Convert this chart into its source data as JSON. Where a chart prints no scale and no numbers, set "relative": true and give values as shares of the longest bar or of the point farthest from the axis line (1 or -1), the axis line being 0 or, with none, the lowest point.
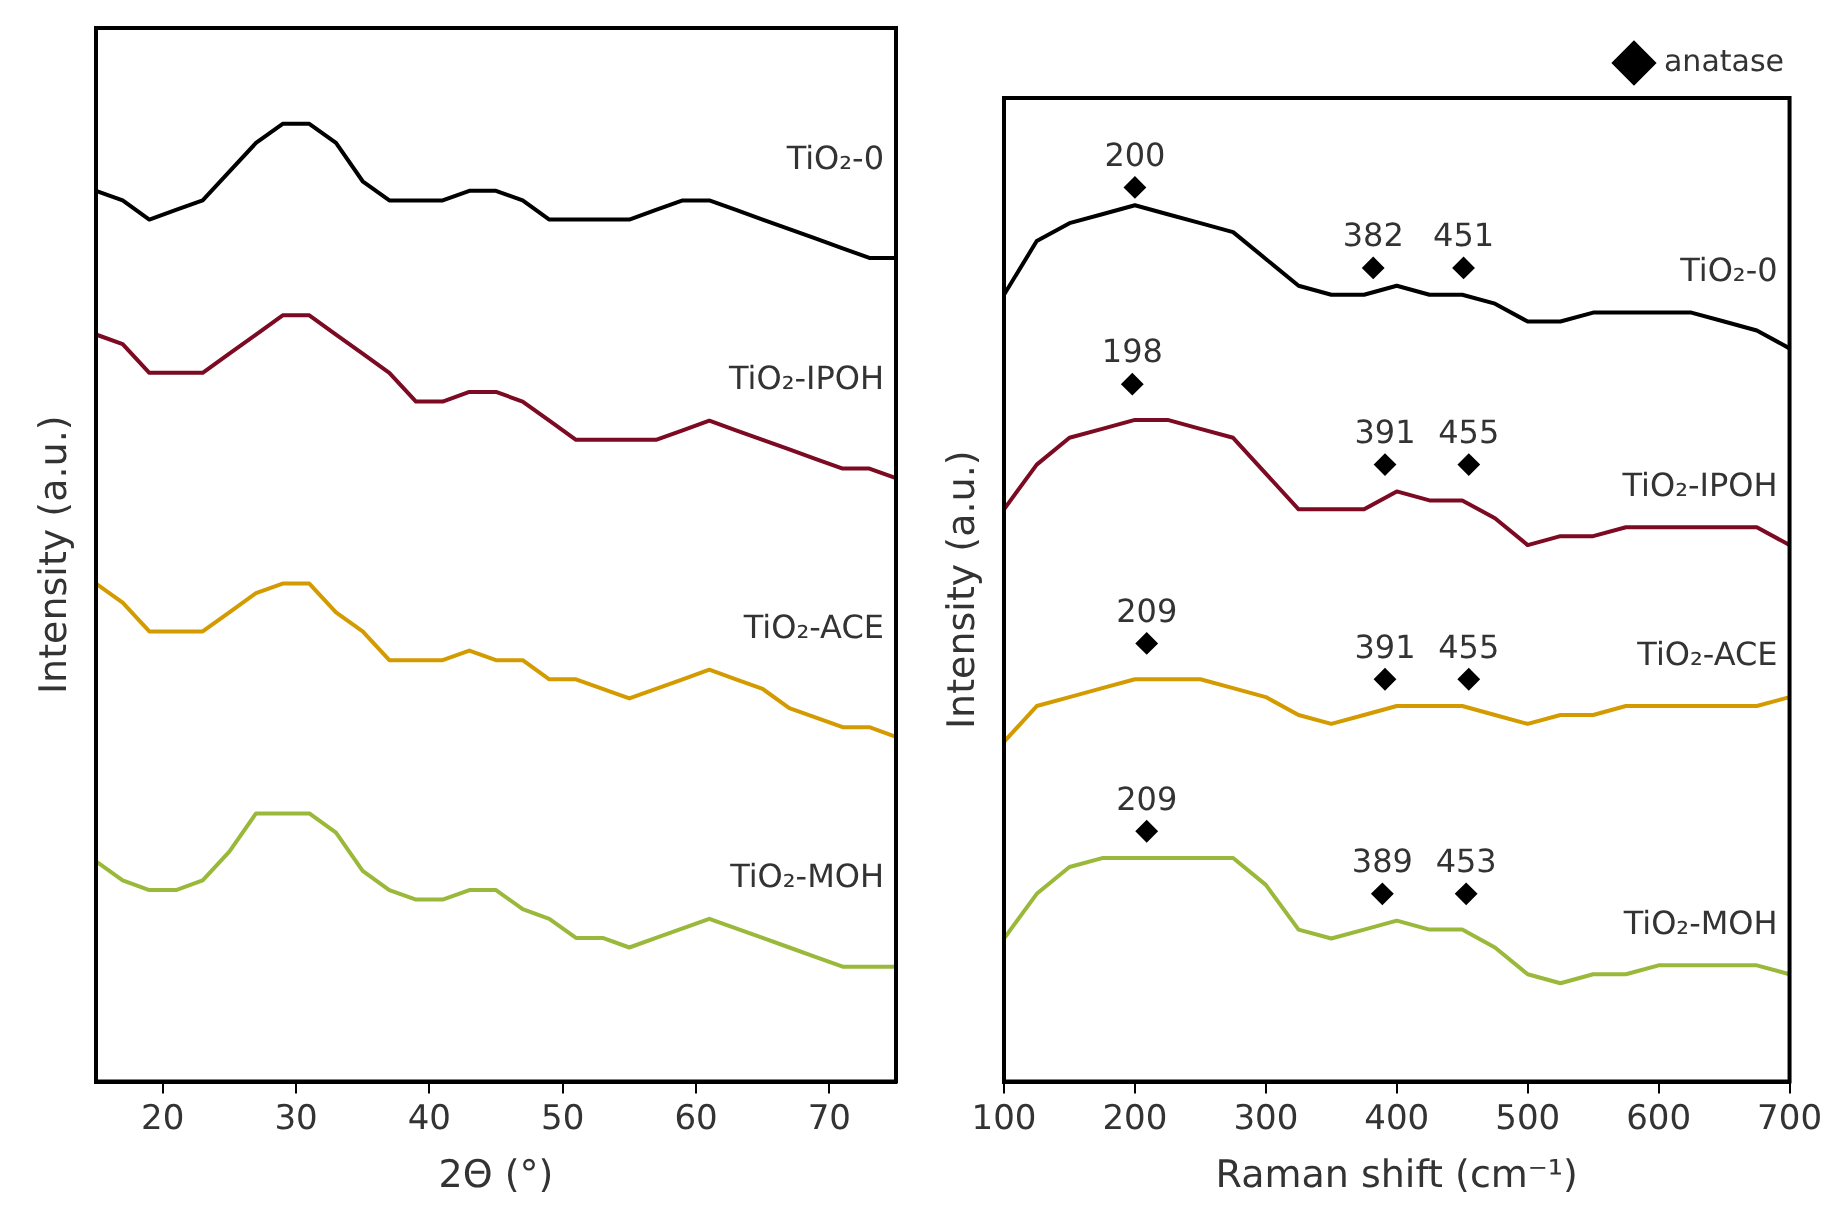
{
  "chart_data": [
    {
      "type": "line",
      "xlabel": "2Θ (°)",
      "ylabel": "Intensity (a.u.)",
      "relative": true,
      "legend": false,
      "xlim": [
        15,
        75
      ],
      "xticks": [
        20,
        30,
        40,
        50,
        60,
        70
      ],
      "x": [
        15,
        17,
        19,
        21,
        23,
        25,
        27,
        29,
        31,
        33,
        35,
        37,
        39,
        41,
        43,
        45,
        47,
        49,
        51,
        53,
        55,
        57,
        59,
        61,
        63,
        65,
        67,
        69,
        71,
        73,
        75
      ],
      "series": [
        {
          "name": "TiO₂-0",
          "color": "#000000",
          "values": [
            0.93,
            0.92,
            0.9,
            0.91,
            0.92,
            0.95,
            0.98,
            1.0,
            1.0,
            0.98,
            0.94,
            0.92,
            0.92,
            0.92,
            0.93,
            0.93,
            0.92,
            0.9,
            0.9,
            0.9,
            0.9,
            0.91,
            0.92,
            0.92,
            0.91,
            0.9,
            0.89,
            0.88,
            0.87,
            0.86,
            0.86
          ]
        },
        {
          "name": "TiO₂-IPOH",
          "color": "#7b0a22",
          "values": [
            0.78,
            0.77,
            0.74,
            0.74,
            0.74,
            0.76,
            0.78,
            0.8,
            0.8,
            0.78,
            0.76,
            0.74,
            0.71,
            0.71,
            0.72,
            0.72,
            0.71,
            0.69,
            0.67,
            0.67,
            0.67,
            0.67,
            0.68,
            0.69,
            0.68,
            0.67,
            0.66,
            0.65,
            0.64,
            0.64,
            0.63
          ]
        },
        {
          "name": "TiO₂-ACE",
          "color": "#d39b00",
          "values": [
            0.52,
            0.5,
            0.47,
            0.47,
            0.47,
            0.49,
            0.51,
            0.52,
            0.52,
            0.49,
            0.47,
            0.44,
            0.44,
            0.44,
            0.45,
            0.44,
            0.44,
            0.42,
            0.42,
            0.41,
            0.4,
            0.41,
            0.42,
            0.43,
            0.42,
            0.41,
            0.39,
            0.38,
            0.37,
            0.37,
            0.36
          ]
        },
        {
          "name": "TiO₂-MOH",
          "color": "#9ab83a",
          "values": [
            0.23,
            0.21,
            0.2,
            0.2,
            0.21,
            0.24,
            0.28,
            0.28,
            0.28,
            0.26,
            0.22,
            0.2,
            0.19,
            0.19,
            0.2,
            0.2,
            0.18,
            0.17,
            0.15,
            0.15,
            0.14,
            0.15,
            0.16,
            0.17,
            0.16,
            0.15,
            0.14,
            0.13,
            0.12,
            0.12,
            0.12
          ]
        }
      ]
    },
    {
      "type": "line",
      "xlabel": "Raman shift (cm⁻¹)",
      "ylabel": "Intensity (a.u.)",
      "relative": true,
      "legend": "top right",
      "xlim": [
        100,
        700
      ],
      "xticks": [
        100,
        200,
        300,
        400,
        500,
        600,
        700
      ],
      "x": [
        100,
        125,
        150,
        175,
        200,
        225,
        250,
        275,
        300,
        325,
        350,
        375,
        400,
        425,
        450,
        475,
        500,
        525,
        550,
        575,
        600,
        625,
        650,
        675,
        700
      ],
      "series": [
        {
          "name": "TiO₂-0",
          "color": "#000000",
          "values": [
            0.88,
            0.94,
            0.96,
            0.97,
            0.98,
            0.97,
            0.96,
            0.95,
            0.92,
            0.89,
            0.88,
            0.88,
            0.89,
            0.88,
            0.88,
            0.87,
            0.85,
            0.85,
            0.86,
            0.86,
            0.86,
            0.86,
            0.85,
            0.84,
            0.82
          ]
        },
        {
          "name": "TiO₂-IPOH",
          "color": "#7b0a22",
          "values": [
            0.64,
            0.69,
            0.72,
            0.73,
            0.74,
            0.74,
            0.73,
            0.72,
            0.68,
            0.64,
            0.64,
            0.64,
            0.66,
            0.65,
            0.65,
            0.63,
            0.6,
            0.61,
            0.61,
            0.62,
            0.62,
            0.62,
            0.62,
            0.62,
            0.6
          ]
        },
        {
          "name": "TiO₂-ACE",
          "color": "#d39b00",
          "values": [
            0.38,
            0.42,
            0.43,
            0.44,
            0.45,
            0.45,
            0.45,
            0.44,
            0.43,
            0.41,
            0.4,
            0.41,
            0.42,
            0.42,
            0.42,
            0.41,
            0.4,
            0.41,
            0.41,
            0.42,
            0.42,
            0.42,
            0.42,
            0.42,
            0.43
          ]
        },
        {
          "name": "TiO₂-MOH",
          "color": "#9ab83a",
          "values": [
            0.16,
            0.21,
            0.24,
            0.25,
            0.25,
            0.25,
            0.25,
            0.25,
            0.22,
            0.17,
            0.16,
            0.17,
            0.18,
            0.17,
            0.17,
            0.15,
            0.12,
            0.11,
            0.12,
            0.12,
            0.13,
            0.13,
            0.13,
            0.13,
            0.12
          ]
        },
        {
          "name": "anatase",
          "type": "scatter",
          "marker": "diamond",
          "color": "#000000",
          "x": [
            200,
            382,
            451,
            198,
            391,
            455,
            209,
            391,
            455,
            209,
            389,
            453
          ],
          "values": [
            1.0,
            0.91,
            0.91,
            0.78,
            0.69,
            0.69,
            0.49,
            0.45,
            0.45,
            0.28,
            0.21,
            0.21
          ]
        }
      ],
      "annotations": [
        {
          "text": "200",
          "x": 200,
          "y": 1.0
        },
        {
          "text": "382",
          "x": 382,
          "y": 0.91
        },
        {
          "text": "451",
          "x": 451,
          "y": 0.91
        },
        {
          "text": "198",
          "x": 198,
          "y": 0.78
        },
        {
          "text": "391",
          "x": 391,
          "y": 0.69
        },
        {
          "text": "455",
          "x": 455,
          "y": 0.69
        },
        {
          "text": "209",
          "x": 209,
          "y": 0.49
        },
        {
          "text": "391",
          "x": 391,
          "y": 0.45
        },
        {
          "text": "455",
          "x": 455,
          "y": 0.45
        },
        {
          "text": "209",
          "x": 209,
          "y": 0.28
        },
        {
          "text": "389",
          "x": 389,
          "y": 0.21
        },
        {
          "text": "453",
          "x": 453,
          "y": 0.21
        }
      ]
    }
  ]
}
